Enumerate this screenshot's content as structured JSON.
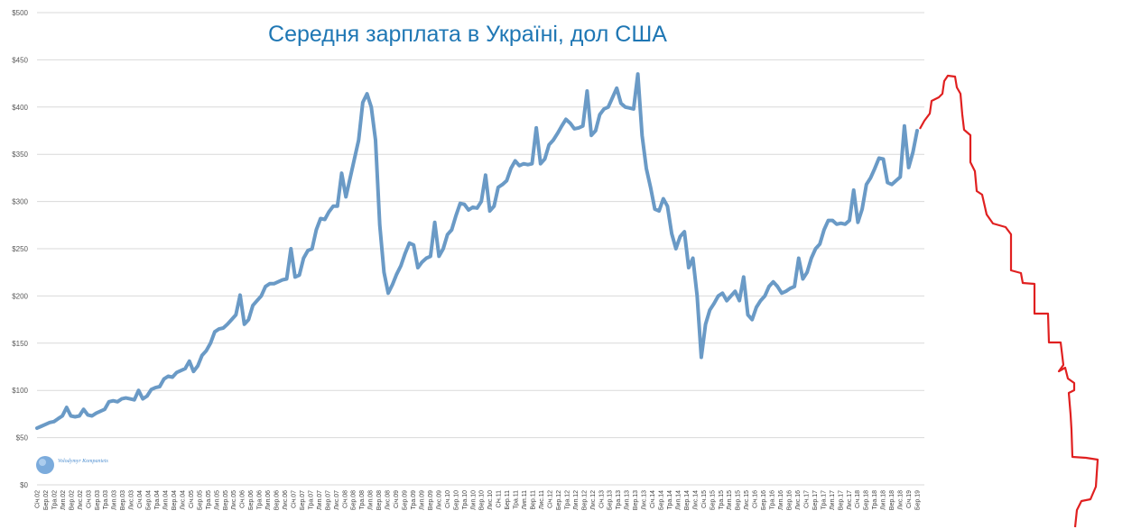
{
  "chart_data": {
    "type": "line",
    "title": "Середня зарплата в Україні, дол США",
    "xlabel": "",
    "ylabel": "",
    "ylim": [
      0,
      500
    ],
    "yticks": [
      "$0",
      "$50",
      "$100",
      "$150",
      "$200",
      "$250",
      "$300",
      "$350",
      "$400",
      "$450",
      "$500"
    ],
    "grid": true,
    "colors": {
      "line": "#6a9ac6",
      "grid": "#d9d9d9",
      "title": "#1f77b4",
      "annotation": "#e02020"
    },
    "xticks": [
      "Січ.02",
      "Бер.02",
      "Тра.02",
      "Лип.02",
      "Вер.02",
      "Лис.02",
      "Січ.03",
      "Бер.03",
      "Тра.03",
      "Лип.03",
      "Вер.03",
      "Лис.03",
      "Січ.04",
      "Бер.04",
      "Тра.04",
      "Лип.04",
      "Вер.04",
      "Лис.04",
      "Січ.05",
      "Бер.05",
      "Тра.05",
      "Лип.05",
      "Вер.05",
      "Лис.05",
      "Січ.06",
      "Бер.06",
      "Тра.06",
      "Лип.06",
      "Вер.06",
      "Лис.06",
      "Січ.07",
      "Бер.07",
      "Тра.07",
      "Лип.07",
      "Вер.07",
      "Лис.07",
      "Січ.08",
      "Бер.08",
      "Тра.08",
      "Лип.08",
      "Вер.08",
      "Лис.08",
      "Січ.09",
      "Бер.09",
      "Тра.09",
      "Лип.09",
      "Вер.09",
      "Лис.09",
      "Січ.10",
      "Бер.10",
      "Тра.10",
      "Лип.10",
      "Вер.10",
      "Лис.10",
      "Січ.11",
      "Бер.11",
      "Тра.11",
      "Лип.11",
      "Вер.11",
      "Лис.11",
      "Січ.12",
      "Бер.12",
      "Тра.12",
      "Лип.12",
      "Вер.12",
      "Лис.12",
      "Січ.13",
      "Бер.13",
      "Тра.13",
      "Лип.13",
      "Вер.13",
      "Лис.13",
      "Січ.14",
      "Бер.14",
      "Тра.14",
      "Лип.14",
      "Вер.14",
      "Лис.14",
      "Січ.15",
      "Бер.15",
      "Тра.15",
      "Лип.15",
      "Вер.15",
      "Лис.15",
      "Січ.16",
      "Бер.16",
      "Тра.16",
      "Лип.16",
      "Вер.16",
      "Лис.16",
      "Січ.17",
      "Бер.17",
      "Тра.17",
      "Лип.17",
      "Вер.17",
      "Лис.17",
      "Січ.18",
      "Бер.18",
      "Тра.18",
      "Лип.18",
      "Вер.18",
      "Лис.18",
      "Січ.19",
      "Бер.19"
    ],
    "series": [
      {
        "values": [
          60,
          62,
          64,
          66,
          67,
          70,
          73,
          82,
          73,
          72,
          73,
          80,
          74,
          73,
          76,
          78,
          80,
          88,
          89,
          88,
          91,
          92,
          91,
          90,
          100,
          91,
          94,
          101,
          103,
          104,
          112,
          115,
          114,
          119,
          121,
          123,
          131,
          120,
          126,
          137,
          142,
          150,
          162,
          165,
          166,
          170,
          175,
          180,
          201,
          170,
          175,
          190,
          195,
          200,
          210,
          213,
          213,
          215,
          217,
          218,
          250,
          220,
          222,
          240,
          248,
          250,
          270,
          282,
          281,
          289,
          295,
          295,
          330,
          305,
          325,
          345,
          365,
          405,
          414,
          400,
          365,
          275,
          225,
          203,
          212,
          223,
          232,
          245,
          256,
          254,
          230,
          236,
          240,
          242,
          278,
          242,
          250,
          265,
          270,
          285,
          298,
          297,
          291,
          294,
          293,
          300,
          328,
          290,
          295,
          315,
          318,
          322,
          335,
          343,
          338,
          340,
          339,
          340,
          378,
          340,
          345,
          360,
          365,
          372,
          380,
          387,
          383,
          377,
          378,
          380,
          417,
          370,
          375,
          392,
          398,
          400,
          410,
          420,
          404,
          400,
          399,
          398,
          435,
          370,
          335,
          315,
          292,
          290,
          303,
          295,
          266,
          250,
          263,
          268,
          230,
          240,
          200,
          135,
          170,
          185,
          192,
          200,
          203,
          195,
          200,
          205,
          195,
          220,
          180,
          175,
          188,
          195,
          200,
          210,
          215,
          210,
          203,
          205,
          208,
          210,
          240,
          218,
          225,
          240,
          250,
          255,
          270,
          280,
          280,
          276,
          277,
          276,
          280,
          312,
          278,
          292,
          318,
          325,
          335,
          346,
          345,
          320,
          318,
          322,
          326,
          380,
          336,
          352,
          375
        ]
      }
    ],
    "logo_text": "Volodymyr Kompaniets"
  }
}
